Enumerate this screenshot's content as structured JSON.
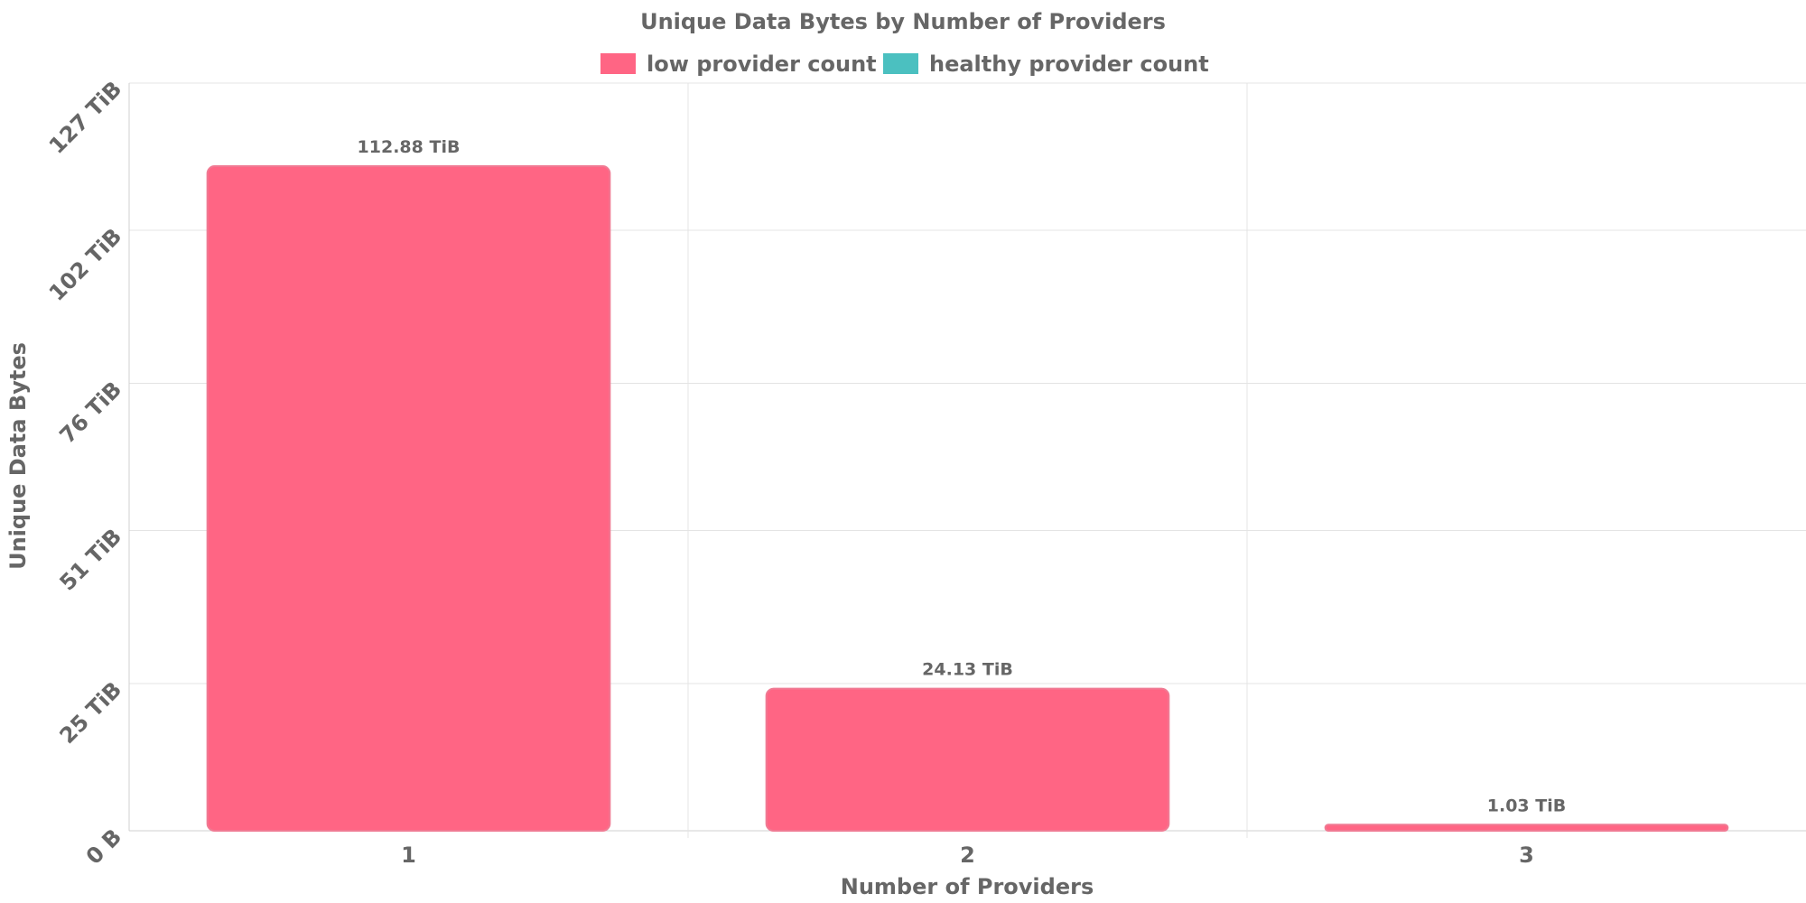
{
  "chart_data": {
    "type": "bar",
    "title": "Unique Data Bytes by Number of Providers",
    "xlabel": "Number of Providers",
    "ylabel": "Unique Data Bytes",
    "categories": [
      "1",
      "2",
      "3"
    ],
    "series": [
      {
        "name": "low provider count",
        "color": "#ff6584",
        "values": [
          112.88,
          24.13,
          1.03
        ]
      },
      {
        "name": "healthy provider count",
        "color": "#4bc0c0",
        "values": [
          0,
          0,
          0
        ]
      }
    ],
    "unit": "TiB",
    "data_labels": [
      "112.88 TiB",
      "24.13 TiB",
      "1.03 TiB"
    ],
    "ylim": [
      0,
      127
    ],
    "yticks": [
      0,
      25,
      51,
      76,
      102,
      127
    ],
    "ytick_labels": [
      "0 B",
      "25 TiB",
      "51 TiB",
      "76 TiB",
      "102 TiB",
      "127 TiB"
    ],
    "legend_position": "top-center",
    "grid": true
  }
}
